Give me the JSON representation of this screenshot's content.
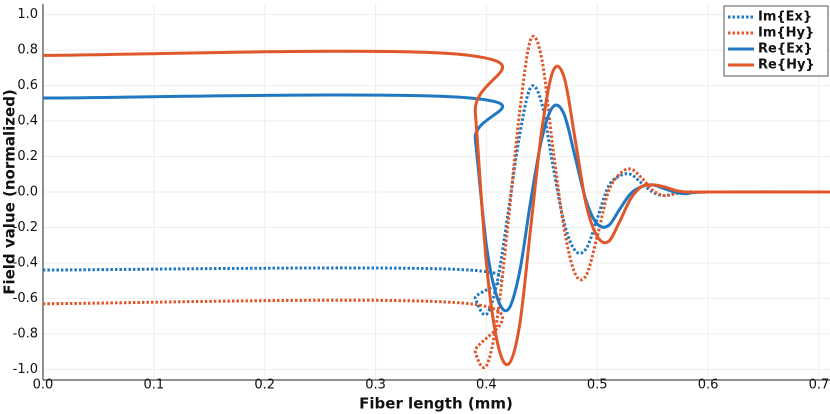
{
  "chart_data": {
    "type": "line",
    "x_label": "Fiber length (mm)",
    "y_label": "Field value (normalized)",
    "x": [
      0,
      0.385,
      0.39,
      0.4,
      0.41,
      0.42,
      0.43,
      0.44,
      0.45,
      0.46,
      0.47,
      0.48,
      0.49,
      0.5,
      0.51,
      0.52,
      0.53,
      0.54,
      0.55,
      0.56,
      0.57,
      0.58,
      0.6,
      0.71
    ],
    "series": [
      {
        "name": "Im{Ex}",
        "color": "#1f78c1",
        "style": "dotted",
        "values": [
          -0.44,
          -0.44,
          -0.6,
          -0.69,
          -0.5,
          -0.1,
          0.32,
          0.59,
          0.5,
          0.15,
          -0.17,
          -0.33,
          -0.32,
          -0.15,
          0.03,
          0.09,
          0.1,
          0.05,
          0.0,
          -0.02,
          -0.01,
          0,
          0,
          0
        ]
      },
      {
        "name": "Im{Hy}",
        "color": "#e0572a",
        "style": "dotted",
        "values": [
          -0.63,
          -0.63,
          -0.9,
          -0.98,
          -0.7,
          -0.15,
          0.45,
          0.86,
          0.75,
          0.25,
          -0.2,
          -0.46,
          -0.47,
          -0.25,
          0.0,
          0.1,
          0.13,
          0.08,
          0.01,
          -0.02,
          -0.01,
          0,
          0,
          0
        ]
      },
      {
        "name": "Re{Ex}",
        "color": "#1f78c1",
        "style": "solid",
        "values": [
          0.53,
          0.53,
          0.3,
          -0.3,
          -0.6,
          -0.66,
          -0.45,
          -0.05,
          0.3,
          0.48,
          0.44,
          0.2,
          -0.05,
          -0.18,
          -0.19,
          -0.1,
          -0.01,
          0.03,
          0.04,
          0.02,
          0.0,
          -0.01,
          0,
          0
        ]
      },
      {
        "name": "Re{Hy}",
        "color": "#e0572a",
        "style": "solid",
        "values": [
          0.77,
          0.77,
          0.45,
          -0.4,
          -0.85,
          -0.97,
          -0.75,
          -0.2,
          0.35,
          0.68,
          0.65,
          0.3,
          -0.07,
          -0.25,
          -0.28,
          -0.17,
          -0.04,
          0.03,
          0.04,
          0.03,
          0.01,
          0,
          0,
          0
        ]
      }
    ],
    "xlim": [
      0,
      0.71
    ],
    "xticks": [
      {
        "value": 0,
        "label": "0.0"
      },
      0.1,
      0.2,
      0.3,
      0.4,
      0.5,
      0.6,
      0.7
    ],
    "ylim": [
      -1.06,
      1.06
    ],
    "yticks": [
      {
        "value": -1,
        "label": "-1.0"
      },
      -0.8,
      -0.6,
      -0.4,
      -0.2,
      {
        "value": 0,
        "label": "0.0"
      },
      0.2,
      0.4,
      0.6,
      0.8,
      {
        "value": 1,
        "label": "1.0"
      }
    ],
    "grid": true,
    "legend": "upper right"
  }
}
